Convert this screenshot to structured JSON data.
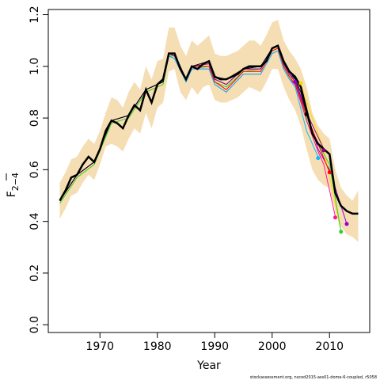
{
  "chart_data": {
    "type": "line",
    "title": "",
    "xlabel": "Year",
    "ylabel": "F",
    "ylabel_subscript": "2−4",
    "xlim": [
      1961,
      2017
    ],
    "ylim": [
      -0.03,
      1.22
    ],
    "xticks": [
      1970,
      1980,
      1990,
      2000,
      2010
    ],
    "yticks": [
      0.0,
      0.2,
      0.4,
      0.6,
      0.8,
      1.0,
      1.2
    ],
    "ytick_labels": [
      "0.0",
      "0.2",
      "0.4",
      "0.6",
      "0.8",
      "1.0",
      "1.2"
    ],
    "band_color": "#f5deb3",
    "band": {
      "x": [
        1963,
        1964,
        1965,
        1966,
        1967,
        1968,
        1969,
        1970,
        1971,
        1972,
        1973,
        1974,
        1975,
        1976,
        1977,
        1978,
        1979,
        1980,
        1981,
        1982,
        1983,
        1984,
        1985,
        1986,
        1987,
        1988,
        1989,
        1990,
        1991,
        1992,
        1993,
        1994,
        1995,
        1996,
        1997,
        1998,
        1999,
        2000,
        2001,
        2002,
        2003,
        2004,
        2005,
        2006,
        2007,
        2008,
        2009,
        2010,
        2011,
        2012,
        2013,
        2014,
        2015
      ],
      "upper": [
        0.55,
        0.59,
        0.64,
        0.65,
        0.69,
        0.72,
        0.7,
        0.75,
        0.82,
        0.88,
        0.87,
        0.84,
        0.9,
        0.94,
        0.91,
        1.0,
        0.95,
        1.02,
        1.03,
        1.15,
        1.15,
        1.08,
        1.04,
        1.1,
        1.08,
        1.1,
        1.12,
        1.05,
        1.04,
        1.04,
        1.05,
        1.06,
        1.08,
        1.1,
        1.1,
        1.08,
        1.12,
        1.17,
        1.18,
        1.1,
        1.06,
        1.03,
        0.99,
        0.92,
        0.82,
        0.77,
        0.74,
        0.72,
        0.6,
        0.53,
        0.5,
        0.48,
        0.52
      ],
      "lower": [
        0.41,
        0.45,
        0.5,
        0.51,
        0.55,
        0.58,
        0.56,
        0.62,
        0.69,
        0.7,
        0.69,
        0.67,
        0.72,
        0.76,
        0.74,
        0.82,
        0.76,
        0.84,
        0.86,
        0.98,
        0.99,
        0.9,
        0.87,
        0.92,
        0.89,
        0.92,
        0.93,
        0.87,
        0.86,
        0.86,
        0.87,
        0.88,
        0.9,
        0.92,
        0.91,
        0.9,
        0.94,
        0.99,
        0.99,
        0.92,
        0.87,
        0.83,
        0.77,
        0.68,
        0.6,
        0.56,
        0.54,
        0.53,
        0.44,
        0.38,
        0.35,
        0.34,
        0.32
      ]
    },
    "main_series": {
      "color": "#000000",
      "x": [
        1963,
        1964,
        1965,
        1966,
        1967,
        1968,
        1969,
        1970,
        1971,
        1972,
        1973,
        1974,
        1975,
        1976,
        1977,
        1978,
        1979,
        1980,
        1981,
        1982,
        1983,
        1984,
        1985,
        1986,
        1987,
        1988,
        1989,
        1990,
        1991,
        1992,
        1993,
        1994,
        1995,
        1996,
        1997,
        1998,
        1999,
        2000,
        2001,
        2002,
        2003,
        2004,
        2005,
        2006,
        2007,
        2008,
        2009,
        2010,
        2011,
        2012,
        2013,
        2014,
        2015
      ],
      "y": [
        0.48,
        0.52,
        0.57,
        0.58,
        0.62,
        0.65,
        0.63,
        0.68,
        0.75,
        0.79,
        0.78,
        0.76,
        0.81,
        0.85,
        0.83,
        0.91,
        0.86,
        0.93,
        0.95,
        1.05,
        1.05,
        0.99,
        0.95,
        1.0,
        0.99,
        1.01,
        1.02,
        0.96,
        0.95,
        0.95,
        0.96,
        0.97,
        0.99,
        1.0,
        1.0,
        1.0,
        1.02,
        1.07,
        1.08,
        1.02,
        0.98,
        0.96,
        0.92,
        0.83,
        0.74,
        0.7,
        0.68,
        0.66,
        0.51,
        0.46,
        0.44,
        0.43,
        0.43
      ]
    },
    "retro_series": [
      {
        "color": "#9400d3",
        "x": [
          1963,
          1966,
          1969,
          1972,
          1975,
          1978,
          1981,
          1982,
          1983,
          1985,
          1986,
          1989,
          1990,
          1992,
          1995,
          1998,
          2000,
          2001,
          2002,
          2003,
          2004,
          2006,
          2008,
          2010,
          2013
        ],
        "y": [
          0.48,
          0.58,
          0.63,
          0.79,
          0.81,
          0.91,
          0.94,
          1.05,
          1.04,
          0.95,
          1.0,
          1.01,
          0.95,
          0.93,
          0.99,
          0.99,
          1.07,
          1.08,
          1.01,
          0.97,
          0.95,
          0.82,
          0.68,
          0.6,
          0.39
        ]
      },
      {
        "color": "#ffd700",
        "x": [
          1963,
          1966,
          1969,
          1972,
          1975,
          1978,
          1981,
          1982,
          1983,
          1985,
          1986,
          1989,
          1990,
          1992,
          1995,
          1998,
          2000,
          2001,
          2002,
          2003,
          2004,
          2005,
          2007,
          2009,
          2012
        ],
        "y": [
          0.47,
          0.57,
          0.62,
          0.78,
          0.8,
          0.9,
          0.93,
          1.04,
          1.03,
          0.94,
          0.99,
          1.0,
          0.94,
          0.92,
          0.98,
          0.98,
          1.06,
          1.07,
          1.0,
          0.96,
          0.94,
          0.93,
          0.8,
          0.68,
          0.36
        ]
      },
      {
        "color": "#32cd32",
        "x": [
          1963,
          1966,
          1969,
          1972,
          1975,
          1978,
          1981,
          1982,
          1983,
          1985,
          1986,
          1989,
          1990,
          1992,
          1995,
          1998,
          2000,
          2001,
          2002,
          2003,
          2004,
          2006,
          2008,
          2010,
          2012
        ],
        "y": [
          0.47,
          0.57,
          0.62,
          0.78,
          0.8,
          0.9,
          0.93,
          1.04,
          1.04,
          0.95,
          0.99,
          1.0,
          0.94,
          0.92,
          0.98,
          0.99,
          1.06,
          1.07,
          1.0,
          0.96,
          0.93,
          0.8,
          0.7,
          0.62,
          0.36
        ]
      },
      {
        "color": "#ff1493",
        "x": [
          1963,
          1966,
          1969,
          1972,
          1975,
          1978,
          1981,
          1982,
          1983,
          1985,
          1986,
          1989,
          1990,
          1992,
          1995,
          1998,
          2000,
          2001,
          2002,
          2003,
          2004,
          2006,
          2008,
          2009,
          2011
        ],
        "y": [
          0.48,
          0.58,
          0.63,
          0.79,
          0.81,
          0.91,
          0.94,
          1.04,
          1.03,
          0.94,
          0.99,
          0.99,
          0.93,
          0.9,
          0.97,
          0.97,
          1.05,
          1.06,
          0.99,
          0.95,
          0.93,
          0.79,
          0.67,
          0.62,
          0.42
        ]
      },
      {
        "color": "#ff0000",
        "x": [
          1963,
          1966,
          1969,
          1972,
          1975,
          1978,
          1981,
          1982,
          1983,
          1985,
          1986,
          1989,
          1990,
          1992,
          1995,
          1998,
          2000,
          2001,
          2002,
          2003,
          2004,
          2006,
          2008,
          2010
        ],
        "y": [
          0.48,
          0.58,
          0.63,
          0.79,
          0.81,
          0.91,
          0.94,
          1.05,
          1.04,
          0.95,
          1.0,
          1.0,
          0.94,
          0.91,
          0.98,
          0.98,
          1.06,
          1.07,
          1.0,
          0.96,
          0.93,
          0.81,
          0.7,
          0.59
        ]
      },
      {
        "color": "#00bfff",
        "x": [
          1963,
          1966,
          1969,
          1972,
          1975,
          1978,
          1981,
          1982,
          1983,
          1985,
          1986,
          1989,
          1990,
          1992,
          1995,
          1998,
          2000,
          2001,
          2002,
          2003,
          2004,
          2006,
          2008
        ],
        "y": [
          0.48,
          0.58,
          0.63,
          0.79,
          0.81,
          0.91,
          0.94,
          1.04,
          1.03,
          0.94,
          0.99,
          0.99,
          0.93,
          0.9,
          0.97,
          0.97,
          1.05,
          1.06,
          0.99,
          0.95,
          0.92,
          0.75,
          0.65
        ]
      },
      {
        "color": "#8b008b",
        "x": [
          1963,
          1966,
          1969,
          1972,
          1975,
          1978,
          1981,
          1982,
          1983,
          1985,
          1986,
          1989,
          1990,
          1992,
          1995,
          1998,
          2000,
          2001,
          2002,
          2003,
          2004,
          2006,
          2009
        ],
        "y": [
          0.48,
          0.58,
          0.63,
          0.79,
          0.81,
          0.91,
          0.94,
          1.05,
          1.04,
          0.95,
          1.0,
          1.01,
          0.95,
          0.93,
          0.99,
          0.99,
          1.07,
          1.08,
          1.01,
          0.97,
          0.94,
          0.82,
          0.68
        ]
      },
      {
        "color": "#000000",
        "x": [
          1963,
          1966,
          1969,
          1972,
          1975,
          1978,
          1981,
          1982,
          1983,
          1985,
          1986,
          1989,
          1990,
          1992,
          1995,
          1998,
          2000,
          2001,
          2002,
          2003,
          2004,
          2005,
          2006
        ],
        "y": [
          0.48,
          0.58,
          0.63,
          0.79,
          0.81,
          0.91,
          0.94,
          1.05,
          1.05,
          0.95,
          1.0,
          1.02,
          0.96,
          0.95,
          0.99,
          1.0,
          1.07,
          1.08,
          1.02,
          0.98,
          0.95,
          0.9,
          0.82
        ]
      }
    ],
    "endpoints": [
      {
        "x": 2004,
        "y": 0.94,
        "color": "#9400d3"
      },
      {
        "x": 2005,
        "y": 0.935,
        "color": "#ffd700"
      },
      {
        "x": 2006,
        "y": 0.815,
        "color": "#000000"
      },
      {
        "x": 2008,
        "y": 0.645,
        "color": "#00bfff"
      },
      {
        "x": 2009,
        "y": 0.675,
        "color": "#8b008b"
      },
      {
        "x": 2010,
        "y": 0.59,
        "color": "#ff0000"
      },
      {
        "x": 2011,
        "y": 0.415,
        "color": "#ff1493"
      },
      {
        "x": 2012,
        "y": 0.36,
        "color": "#32cd32"
      },
      {
        "x": 2013,
        "y": 0.39,
        "color": "#9400d3"
      }
    ],
    "grid": false,
    "legend": "none"
  },
  "footnote": "stockassessment.org, nscod2015-ass01-dome-6-coupled, r5058"
}
